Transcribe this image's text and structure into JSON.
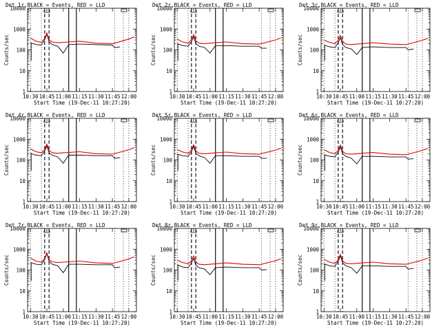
{
  "chart_data": [
    {
      "type": "line",
      "title": "Det 1r,BLACK = Events, RED = LLD",
      "ylabel": "Counts/sec",
      "xlabel": "Start Time (19-Dec-11 10:27:20)",
      "yscale": "log",
      "ylim": [
        1,
        10000
      ],
      "xlim": [
        "10:27:20",
        "12:07:00"
      ],
      "x_ticks": [
        "10:30",
        "10:45",
        "11:00",
        "11:15",
        "11:30",
        "11:45",
        "12:00"
      ],
      "y_ticks": [
        "1",
        "10",
        "100",
        "1000",
        "10000"
      ],
      "event_marks": [
        "10:45"
      ],
      "series": [
        {
          "color": "#000000",
          "x": [
            "10:30",
            "10:35",
            "10:40",
            "10:43",
            "10:45",
            "10:47",
            "10:50",
            "10:55",
            "11:00",
            "11:05",
            "11:15",
            "11:30",
            "11:45",
            "11:47",
            "11:52"
          ],
          "values": [
            220,
            180,
            170,
            300,
            580,
            250,
            180,
            150,
            70,
            180,
            190,
            180,
            170,
            130,
            140
          ]
        },
        {
          "color": "#e00000",
          "x": [
            "10:30",
            "10:35",
            "10:40",
            "10:43",
            "10:45",
            "10:47",
            "10:50",
            "10:55",
            "11:00",
            "11:05",
            "11:15",
            "11:30",
            "11:45",
            "11:47",
            "12:00",
            "12:05"
          ],
          "values": [
            370,
            260,
            230,
            350,
            650,
            300,
            240,
            220,
            230,
            240,
            260,
            210,
            200,
            210,
            330,
            420
          ]
        }
      ]
    },
    {
      "type": "line",
      "title": "Det 2r,BLACK = Events, RED = LLD",
      "ylabel": "Counts/sec",
      "xlabel": "Start Time (19-Dec-11 10:27:20)",
      "yscale": "log",
      "ylim": [
        1,
        10000
      ],
      "xlim": [
        "10:27:20",
        "12:07:00"
      ],
      "x_ticks": [
        "10:30",
        "10:45",
        "11:00",
        "11:15",
        "11:30",
        "11:45",
        "12:00"
      ],
      "y_ticks": [
        "1",
        "10",
        "100",
        "1000",
        "10000"
      ],
      "event_marks": [
        "10:45"
      ],
      "series": [
        {
          "color": "#000000",
          "x": [
            "10:30",
            "10:35",
            "10:40",
            "10:43",
            "10:45",
            "10:47",
            "10:50",
            "10:55",
            "11:00",
            "11:05",
            "11:15",
            "11:30",
            "11:45",
            "11:47",
            "11:52"
          ],
          "values": [
            200,
            160,
            150,
            250,
            420,
            200,
            150,
            130,
            70,
            160,
            160,
            150,
            150,
            120,
            120
          ]
        },
        {
          "color": "#e00000",
          "x": [
            "10:30",
            "10:35",
            "10:40",
            "10:43",
            "10:45",
            "10:47",
            "10:50",
            "10:55",
            "11:00",
            "11:05",
            "11:15",
            "11:30",
            "11:45",
            "11:47",
            "12:00",
            "12:05"
          ],
          "values": [
            330,
            240,
            210,
            310,
            550,
            280,
            210,
            200,
            210,
            220,
            240,
            200,
            190,
            200,
            300,
            380
          ]
        }
      ]
    },
    {
      "type": "line",
      "title": "Det 3r,BLACK = Events, RED = LLD",
      "ylabel": "Counts/sec",
      "xlabel": "Start Time (19-Dec-11 10:27:20)",
      "yscale": "log",
      "ylim": [
        1,
        10000
      ],
      "xlim": [
        "10:27:20",
        "12:07:00"
      ],
      "x_ticks": [
        "10:30",
        "10:45",
        "11:00",
        "11:15",
        "11:30",
        "11:45",
        "12:00"
      ],
      "y_ticks": [
        "1",
        "10",
        "100",
        "1000",
        "10000"
      ],
      "event_marks": [
        "10:45"
      ],
      "series": [
        {
          "color": "#000000",
          "x": [
            "10:30",
            "10:35",
            "10:40",
            "10:43",
            "10:45",
            "10:47",
            "10:50",
            "10:55",
            "11:00",
            "11:05",
            "11:15",
            "11:30",
            "11:45",
            "11:47",
            "11:52"
          ],
          "values": [
            170,
            140,
            130,
            220,
            380,
            180,
            130,
            110,
            60,
            130,
            140,
            130,
            130,
            100,
            110
          ]
        },
        {
          "color": "#e00000",
          "x": [
            "10:30",
            "10:35",
            "10:40",
            "10:43",
            "10:45",
            "10:47",
            "10:50",
            "10:55",
            "11:00",
            "11:05",
            "11:15",
            "11:30",
            "11:45",
            "11:47",
            "12:00",
            "12:05"
          ],
          "values": [
            300,
            230,
            200,
            290,
            500,
            260,
            190,
            180,
            190,
            200,
            220,
            190,
            180,
            190,
            290,
            360
          ]
        }
      ]
    },
    {
      "type": "line",
      "title": "Det 4r,BLACK = Events, RED = LLD",
      "ylabel": "Counts/sec",
      "xlabel": "Start Time (19-Dec-11 10:27:20)",
      "yscale": "log",
      "ylim": [
        1,
        10000
      ],
      "xlim": [
        "10:27:20",
        "12:07:00"
      ],
      "x_ticks": [
        "10:30",
        "10:45",
        "11:00",
        "11:15",
        "11:30",
        "11:45",
        "12:00"
      ],
      "y_ticks": [
        "1",
        "10",
        "100",
        "1000",
        "10000"
      ],
      "event_marks": [
        "10:45"
      ],
      "series": [
        {
          "color": "#000000",
          "x": [
            "10:30",
            "10:35",
            "10:40",
            "10:43",
            "10:45",
            "10:47",
            "10:50",
            "10:55",
            "11:00",
            "11:05",
            "11:15",
            "11:30",
            "11:45",
            "11:47",
            "11:52"
          ],
          "values": [
            210,
            170,
            160,
            270,
            480,
            220,
            170,
            140,
            70,
            170,
            170,
            160,
            160,
            120,
            130
          ]
        },
        {
          "color": "#e00000",
          "x": [
            "10:30",
            "10:35",
            "10:40",
            "10:43",
            "10:45",
            "10:47",
            "10:50",
            "10:55",
            "11:00",
            "11:05",
            "11:15",
            "11:30",
            "11:45",
            "11:47",
            "12:00",
            "12:05"
          ],
          "values": [
            340,
            250,
            220,
            320,
            580,
            290,
            220,
            210,
            220,
            230,
            250,
            200,
            190,
            200,
            310,
            390
          ]
        }
      ]
    },
    {
      "type": "line",
      "title": "Det 5r,BLACK = Events, RED = LLD",
      "ylabel": "Counts/sec",
      "xlabel": "Start Time (19-Dec-11 10:27:20)",
      "yscale": "log",
      "ylim": [
        1,
        10000
      ],
      "xlim": [
        "10:27:20",
        "12:07:00"
      ],
      "x_ticks": [
        "10:30",
        "10:45",
        "11:00",
        "11:15",
        "11:30",
        "11:45",
        "12:00"
      ],
      "y_ticks": [
        "1",
        "10",
        "100",
        "1000",
        "10000"
      ],
      "event_marks": [
        "10:45"
      ],
      "series": [
        {
          "color": "#000000",
          "x": [
            "10:30",
            "10:35",
            "10:40",
            "10:43",
            "10:45",
            "10:47",
            "10:50",
            "10:55",
            "11:00",
            "11:05",
            "11:15",
            "11:30",
            "11:45",
            "11:47",
            "11:52"
          ],
          "values": [
            190,
            160,
            150,
            250,
            450,
            210,
            160,
            130,
            70,
            160,
            160,
            150,
            150,
            120,
            120
          ]
        },
        {
          "color": "#e00000",
          "x": [
            "10:30",
            "10:35",
            "10:40",
            "10:43",
            "10:45",
            "10:47",
            "10:50",
            "10:55",
            "11:00",
            "11:05",
            "11:15",
            "11:30",
            "11:45",
            "11:47",
            "12:00",
            "12:05"
          ],
          "values": [
            320,
            240,
            210,
            300,
            540,
            270,
            210,
            200,
            210,
            220,
            240,
            200,
            190,
            200,
            300,
            370
          ]
        }
      ]
    },
    {
      "type": "line",
      "title": "Det 6r,BLACK = Events, RED = LLD",
      "ylabel": "Counts/sec",
      "xlabel": "Start Time (19-Dec-11 10:27:20)",
      "yscale": "log",
      "ylim": [
        1,
        10000
      ],
      "xlim": [
        "10:27:20",
        "12:07:00"
      ],
      "x_ticks": [
        "10:30",
        "10:45",
        "11:00",
        "11:15",
        "11:30",
        "11:45",
        "12:00"
      ],
      "y_ticks": [
        "1",
        "10",
        "100",
        "1000",
        "10000"
      ],
      "event_marks": [
        "10:45"
      ],
      "series": [
        {
          "color": "#000000",
          "x": [
            "10:30",
            "10:35",
            "10:40",
            "10:43",
            "10:45",
            "10:47",
            "10:50",
            "10:55",
            "11:00",
            "11:05",
            "11:15",
            "11:30",
            "11:45",
            "11:47",
            "11:52"
          ],
          "values": [
            180,
            150,
            140,
            240,
            420,
            200,
            150,
            120,
            65,
            150,
            150,
            140,
            140,
            110,
            115
          ]
        },
        {
          "color": "#e00000",
          "x": [
            "10:30",
            "10:35",
            "10:40",
            "10:43",
            "10:45",
            "10:47",
            "10:50",
            "10:55",
            "11:00",
            "11:05",
            "11:15",
            "11:30",
            "11:45",
            "11:47",
            "12:00",
            "12:05"
          ],
          "values": [
            310,
            230,
            200,
            290,
            520,
            260,
            200,
            190,
            200,
            210,
            230,
            190,
            180,
            190,
            290,
            360
          ]
        }
      ]
    },
    {
      "type": "line",
      "title": "Det 7r,BLACK = Events, RED = LLD",
      "ylabel": "Counts/sec",
      "xlabel": "Start Time (19-Dec-11 10:27:20)",
      "yscale": "log",
      "ylim": [
        1,
        10000
      ],
      "xlim": [
        "10:27:20",
        "12:07:00"
      ],
      "x_ticks": [
        "10:30",
        "10:45",
        "11:00",
        "11:15",
        "11:30",
        "11:45",
        "12:00"
      ],
      "y_ticks": [
        "1",
        "10",
        "100",
        "1000",
        "10000"
      ],
      "event_marks": [
        "10:45"
      ],
      "series": [
        {
          "color": "#000000",
          "x": [
            "10:30",
            "10:35",
            "10:40",
            "10:43",
            "10:45",
            "10:47",
            "10:50",
            "10:55",
            "11:00",
            "11:05",
            "11:15",
            "11:30",
            "11:45",
            "11:47",
            "11:52"
          ],
          "values": [
            230,
            190,
            180,
            320,
            620,
            260,
            190,
            160,
            75,
            190,
            190,
            180,
            180,
            130,
            140
          ]
        },
        {
          "color": "#e00000",
          "x": [
            "10:30",
            "10:35",
            "10:40",
            "10:43",
            "10:45",
            "10:47",
            "10:50",
            "10:55",
            "11:00",
            "11:05",
            "11:15",
            "11:30",
            "11:45",
            "11:47",
            "12:00",
            "12:05"
          ],
          "values": [
            380,
            270,
            240,
            360,
            680,
            310,
            250,
            230,
            240,
            250,
            270,
            220,
            210,
            220,
            340,
            430
          ]
        }
      ]
    },
    {
      "type": "line",
      "title": "Det 8r,BLACK = Events, RED = LLD",
      "ylabel": "Counts/sec",
      "xlabel": "Start Time (19-Dec-11 10:27:20)",
      "yscale": "log",
      "ylim": [
        1,
        10000
      ],
      "xlim": [
        "10:27:20",
        "12:07:00"
      ],
      "x_ticks": [
        "10:30",
        "10:45",
        "11:00",
        "11:15",
        "11:30",
        "11:45",
        "12:00"
      ],
      "y_ticks": [
        "1",
        "10",
        "100",
        "1000",
        "10000"
      ],
      "event_marks": [
        "10:45"
      ],
      "series": [
        {
          "color": "#000000",
          "x": [
            "10:30",
            "10:35",
            "10:40",
            "10:43",
            "10:45",
            "10:47",
            "10:50",
            "10:55",
            "11:00",
            "11:05",
            "11:15",
            "11:30",
            "11:45",
            "11:47",
            "11:52"
          ],
          "values": [
            180,
            140,
            130,
            220,
            360,
            170,
            130,
            110,
            60,
            130,
            140,
            130,
            130,
            100,
            105
          ]
        },
        {
          "color": "#e00000",
          "x": [
            "10:30",
            "10:35",
            "10:40",
            "10:43",
            "10:45",
            "10:47",
            "10:50",
            "10:55",
            "11:00",
            "11:05",
            "11:15",
            "11:30",
            "11:45",
            "11:47",
            "12:00",
            "12:05"
          ],
          "values": [
            300,
            230,
            200,
            280,
            480,
            250,
            190,
            180,
            190,
            200,
            220,
            190,
            180,
            190,
            280,
            350
          ]
        }
      ]
    },
    {
      "type": "line",
      "title": "Det 9r,BLACK = Events, RED = LLD",
      "ylabel": "Counts/sec",
      "xlabel": "Start Time (19-Dec-11 10:27:20)",
      "yscale": "log",
      "ylim": [
        1,
        10000
      ],
      "xlim": [
        "10:27:20",
        "12:07:00"
      ],
      "x_ticks": [
        "10:30",
        "10:45",
        "11:00",
        "11:15",
        "11:30",
        "11:45",
        "12:00"
      ],
      "y_ticks": [
        "1",
        "10",
        "100",
        "1000",
        "10000"
      ],
      "event_marks": [
        "10:45"
      ],
      "series": [
        {
          "color": "#000000",
          "x": [
            "10:30",
            "10:35",
            "10:40",
            "10:43",
            "10:45",
            "10:47",
            "10:50",
            "10:55",
            "11:00",
            "11:05",
            "11:15",
            "11:30",
            "11:45",
            "11:47",
            "11:52"
          ],
          "values": [
            200,
            160,
            150,
            270,
            480,
            220,
            160,
            130,
            70,
            160,
            160,
            150,
            150,
            110,
            120
          ]
        },
        {
          "color": "#e00000",
          "x": [
            "10:30",
            "10:35",
            "10:40",
            "10:43",
            "10:45",
            "10:47",
            "10:50",
            "10:55",
            "11:00",
            "11:05",
            "11:15",
            "11:30",
            "11:45",
            "11:47",
            "12:00",
            "12:05"
          ],
          "values": [
            330,
            240,
            210,
            310,
            560,
            280,
            210,
            200,
            210,
            220,
            240,
            200,
            190,
            200,
            300,
            380
          ]
        }
      ]
    }
  ]
}
